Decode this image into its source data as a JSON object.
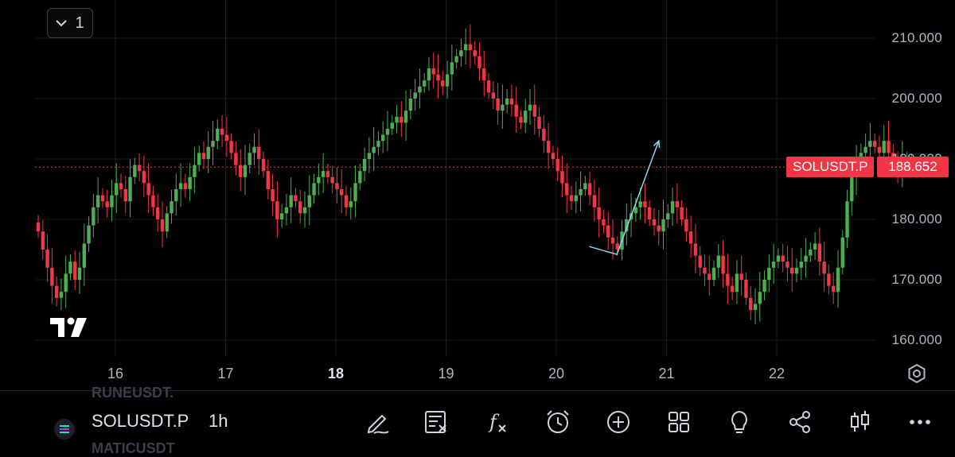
{
  "pane_button": {
    "icon": "chevron-down-icon",
    "count": "1"
  },
  "symbol": "SOLUSDT.P",
  "last_price": "188.652",
  "timeframe": "1h",
  "ghost_symbols": {
    "above": "RUNEUSDT.",
    "below": "MATICUSDT"
  },
  "colors": {
    "up": "#26a69a",
    "up_bright": "#4caf50",
    "down": "#f23645",
    "grid": "#1a1d26",
    "trendline": "#8fd3f4"
  },
  "toolbar_icons": [
    "pencil-icon",
    "text-note-icon",
    "indicators-fx-icon",
    "alarm-clock-icon",
    "plus-circle-icon",
    "grid-icon",
    "idea-lightbulb-icon",
    "share-icon",
    "candle-type-icon",
    "more-dots-icon"
  ],
  "chart_data": {
    "type": "candlestick",
    "title": "",
    "xlabel": "",
    "ylabel": "",
    "y_ticks": [
      "210.000",
      "200.000",
      "190.000",
      "180.000",
      "170.000",
      "160.000"
    ],
    "x_ticks": [
      {
        "label": "16",
        "bold": false
      },
      {
        "label": "17",
        "bold": false
      },
      {
        "label": "18",
        "bold": true
      },
      {
        "label": "19",
        "bold": false
      },
      {
        "label": "20",
        "bold": false
      },
      {
        "label": "21",
        "bold": false
      },
      {
        "label": "22",
        "bold": false
      }
    ],
    "ylim": [
      157,
      212
    ],
    "start_day": 15.3,
    "candle_interval_days": 0.0417,
    "closes": [
      178,
      175,
      172,
      169,
      167,
      168,
      171,
      173,
      170,
      172,
      176,
      179,
      182,
      184,
      183,
      182,
      184,
      186,
      185,
      183,
      187,
      189,
      188,
      186,
      184,
      182,
      180,
      178,
      181,
      183,
      185,
      186,
      185,
      187,
      189,
      191,
      190,
      192,
      193,
      195,
      194,
      193,
      191,
      189,
      187,
      189,
      191,
      192,
      190,
      188,
      185,
      183,
      180,
      181,
      182,
      184,
      183,
      181,
      182,
      184,
      186,
      187,
      188,
      187,
      186,
      185,
      184,
      182,
      183,
      186,
      188,
      190,
      191,
      192,
      193,
      194,
      195,
      196,
      197,
      196,
      198,
      200,
      201,
      202,
      203,
      205,
      204,
      203,
      202,
      204,
      206,
      207,
      208,
      209,
      208,
      207,
      205,
      203,
      201,
      200,
      198,
      199,
      200,
      199,
      197,
      196,
      198,
      199,
      197,
      195,
      193,
      191,
      190,
      188,
      186,
      184,
      183,
      184,
      185,
      186,
      184,
      182,
      180,
      179,
      177,
      176,
      175,
      178,
      180,
      181,
      182,
      183,
      182,
      180,
      179,
      178,
      180,
      181,
      183,
      182,
      180,
      178,
      176,
      174,
      172,
      171,
      170,
      172,
      174,
      171,
      169,
      168,
      171,
      170,
      167,
      165,
      166,
      168,
      170,
      172,
      173,
      174,
      173,
      172,
      171,
      172,
      173,
      174,
      175,
      176,
      173,
      171,
      169,
      168,
      172,
      177,
      183,
      187,
      189,
      191,
      192,
      193,
      192,
      191,
      193,
      191,
      189,
      188,
      190,
      189,
      188.652
    ],
    "last_price": 188.652,
    "series_symbol": "SOLUSDT.P",
    "trendline": [
      {
        "day": 20.3,
        "price": 175.5
      },
      {
        "day": 20.55,
        "price": 174.2
      },
      {
        "day": 20.93,
        "price": 193.0
      }
    ]
  }
}
